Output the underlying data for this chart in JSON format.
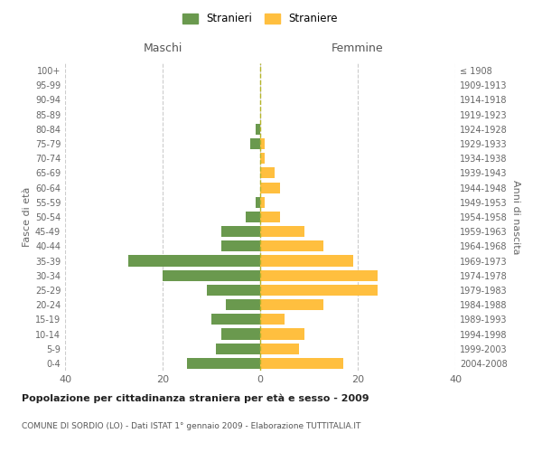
{
  "age_groups": [
    "0-4",
    "5-9",
    "10-14",
    "15-19",
    "20-24",
    "25-29",
    "30-34",
    "35-39",
    "40-44",
    "45-49",
    "50-54",
    "55-59",
    "60-64",
    "65-69",
    "70-74",
    "75-79",
    "80-84",
    "85-89",
    "90-94",
    "95-99",
    "100+"
  ],
  "birth_years": [
    "2004-2008",
    "1999-2003",
    "1994-1998",
    "1989-1993",
    "1984-1988",
    "1979-1983",
    "1974-1978",
    "1969-1973",
    "1964-1968",
    "1959-1963",
    "1954-1958",
    "1949-1953",
    "1944-1948",
    "1939-1943",
    "1934-1938",
    "1929-1933",
    "1924-1928",
    "1919-1923",
    "1914-1918",
    "1909-1913",
    "≤ 1908"
  ],
  "maschi": [
    15,
    9,
    8,
    10,
    7,
    11,
    20,
    27,
    8,
    8,
    3,
    1,
    0,
    0,
    0,
    2,
    1,
    0,
    0,
    0,
    0
  ],
  "femmine": [
    17,
    8,
    9,
    5,
    13,
    24,
    24,
    19,
    13,
    9,
    4,
    1,
    4,
    3,
    1,
    1,
    0,
    0,
    0,
    0,
    0
  ],
  "maschi_color": "#6a994e",
  "femmine_color": "#ffbf3f",
  "background_color": "#ffffff",
  "grid_color": "#cccccc",
  "title": "Popolazione per cittadinanza straniera per età e sesso - 2009",
  "subtitle": "COMUNE DI SORDIO (LO) - Dati ISTAT 1° gennaio 2009 - Elaborazione TUTTITALIA.IT",
  "xlabel_left": "Maschi",
  "xlabel_right": "Femmine",
  "ylabel_left": "Fasce di età",
  "ylabel_right": "Anni di nascita",
  "xlim": 40,
  "legend_stranieri": "Stranieri",
  "legend_straniere": "Straniere"
}
